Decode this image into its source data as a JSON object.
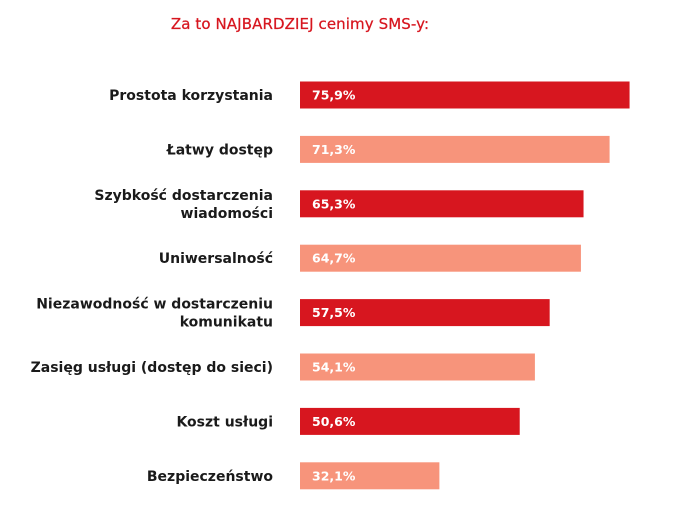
{
  "chart_data": {
    "type": "bar",
    "orientation": "horizontal",
    "title": "Za to NAJBARDZIEJ cenimy SMS-y:",
    "categories": [
      [
        "Prostota korzystania"
      ],
      [
        "Łatwy dostęp"
      ],
      [
        "Szybkość dostarczenia",
        "wiadomości"
      ],
      [
        "Uniwersalność"
      ],
      [
        "Niezawodność w dostarczeniu",
        "komunikatu"
      ],
      [
        "Zasięg usługi (dostęp do sieci)"
      ],
      [
        "Koszt usługi"
      ],
      [
        "Bezpieczeństwo"
      ]
    ],
    "values": [
      75.9,
      71.3,
      65.3,
      64.7,
      57.5,
      54.1,
      50.6,
      32.1
    ],
    "value_labels": [
      "75,9%",
      "71,3%",
      "65,3%",
      "64,7%",
      "57,5%",
      "54,1%",
      "50,6%",
      "32,1%"
    ],
    "xlim": [
      0,
      76
    ],
    "grid": false,
    "colors": {
      "primary": "#d7161f",
      "secondary": "#f7947b",
      "title": "#d7161f",
      "label": "#1a1a1a",
      "value_text": "#ffffff"
    }
  }
}
